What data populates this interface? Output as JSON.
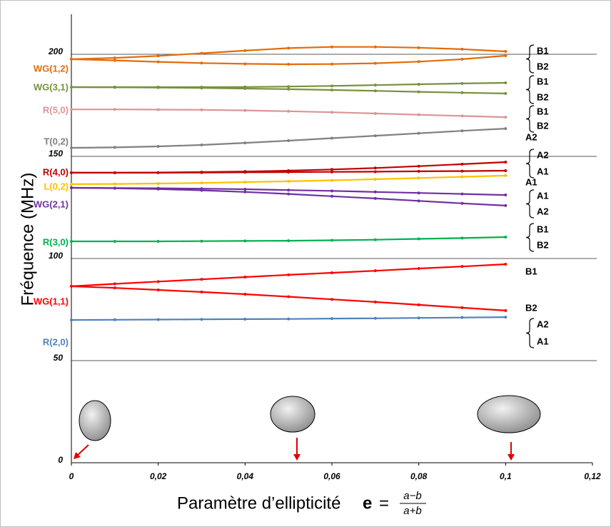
{
  "chart_data": {
    "type": "line",
    "y_label": "Fréquence (MHz)",
    "x_label": "Paramètre d’ellipticité",
    "x_label_formula": {
      "symbol": "e",
      "equals": "=",
      "numerator": "a−b",
      "denominator": "a+b"
    },
    "xlim": [
      0,
      0.12
    ],
    "xticks": [
      0,
      {
        "value": 0.02,
        "label": "0,02"
      },
      {
        "value": 0.04,
        "label": "0,04"
      },
      {
        "value": 0.06,
        "label": "0,06"
      },
      {
        "value": 0.08,
        "label": "0,08"
      },
      {
        "value": 0.1,
        "label": "0,1"
      },
      {
        "value": 0.12,
        "label": "0,12"
      }
    ],
    "ylim": [
      0,
      220
    ],
    "yticks": [
      0,
      50,
      100,
      150,
      200
    ],
    "grid": true,
    "x": [
      0,
      0.01,
      0.02,
      0.03,
      0.04,
      0.05,
      0.06,
      0.07,
      0.08,
      0.09,
      0.1
    ],
    "series": [
      {
        "name": "WG(1,2)",
        "color": "#e36c0a",
        "right_labels": [
          "B1",
          "B2"
        ],
        "lines": [
          [
            197.6,
            198.2,
            199.2,
            200.5,
            201.8,
            203.0,
            203.6,
            203.6,
            203.2,
            202.5,
            201.4
          ],
          [
            197.6,
            197.0,
            196.3,
            195.7,
            195.3,
            195.1,
            195.2,
            195.6,
            196.4,
            197.6,
            199.3
          ]
        ]
      },
      {
        "name": "WG(3,1)",
        "color": "#76923c",
        "right_labels": [
          "B1",
          "B2"
        ],
        "lines": [
          [
            183.9,
            183.9,
            183.9,
            183.9,
            184.0,
            184.2,
            184.5,
            184.9,
            185.3,
            185.7,
            186.0
          ],
          [
            183.9,
            183.8,
            183.7,
            183.5,
            183.2,
            182.9,
            182.5,
            182.1,
            181.6,
            181.2,
            180.8
          ]
        ]
      },
      {
        "name": "R(5,0)",
        "color": "#d99694",
        "right_labels": [
          "B1",
          "B2"
        ],
        "lines": [
          [
            173.0,
            173.0,
            172.9,
            172.8,
            172.5,
            172.1,
            171.6,
            171.0,
            170.4,
            169.8,
            169.2
          ]
        ]
      },
      {
        "name": "T(0,2)",
        "color": "#808080",
        "right_labels": [
          "A2"
        ],
        "lines": [
          [
            154.2,
            154.4,
            154.9,
            155.6,
            156.6,
            157.7,
            158.9,
            160.1,
            161.3,
            162.5,
            163.6
          ]
        ]
      },
      {
        "name": "R(4,0)",
        "color": "#c00000",
        "right_labels": [
          "A2",
          "A1"
        ],
        "lines": [
          [
            142.0,
            142.0,
            142.1,
            142.3,
            142.6,
            143.0,
            143.6,
            144.3,
            145.2,
            146.2,
            147.2
          ],
          [
            142.0,
            142.0,
            142.0,
            142.1,
            142.2,
            142.3,
            142.4,
            142.5,
            142.7,
            142.8,
            143.0
          ]
        ]
      },
      {
        "name": "L(0,2)",
        "color": "#ffc000",
        "right_labels": [
          "A1"
        ],
        "lines": [
          [
            136.4,
            136.5,
            136.7,
            137.0,
            137.4,
            137.8,
            138.3,
            138.8,
            139.4,
            140.0,
            140.6
          ]
        ]
      },
      {
        "name": "WG(2,1)",
        "color": "#7030a0",
        "right_labels": [
          "A1",
          "A2"
        ],
        "lines": [
          [
            134.6,
            134.5,
            134.4,
            134.2,
            133.9,
            133.5,
            133.1,
            132.6,
            132.1,
            131.6,
            131.1
          ],
          [
            134.6,
            134.4,
            134.0,
            133.4,
            132.6,
            131.6,
            130.5,
            129.4,
            128.2,
            127.0,
            125.9
          ]
        ]
      },
      {
        "name": "R(3,0)",
        "color": "#00b050",
        "right_labels": [
          "B1",
          "B2"
        ],
        "lines": [
          [
            108.4,
            108.4,
            108.4,
            108.5,
            108.6,
            108.7,
            108.9,
            109.2,
            109.6,
            110.0,
            110.5
          ]
        ]
      },
      {
        "name": "WG(1,1)",
        "color": "#ff0000",
        "right_labels": [
          "B1",
          "B2"
        ],
        "lines": [
          [
            86.4,
            87.6,
            88.7,
            89.8,
            90.9,
            92.0,
            93.0,
            94.0,
            95.1,
            96.1,
            97.2
          ],
          [
            86.4,
            85.6,
            84.6,
            83.6,
            82.5,
            81.3,
            80.0,
            78.7,
            77.3,
            75.9,
            74.5
          ]
        ]
      },
      {
        "name": "R(2,0)",
        "color": "#4f81bd",
        "right_labels": [
          "A2",
          "A1"
        ],
        "lines": [
          [
            69.9,
            70.0,
            70.1,
            70.2,
            70.3,
            70.4,
            70.6,
            70.7,
            70.9,
            71.1,
            71.3
          ]
        ]
      }
    ]
  }
}
